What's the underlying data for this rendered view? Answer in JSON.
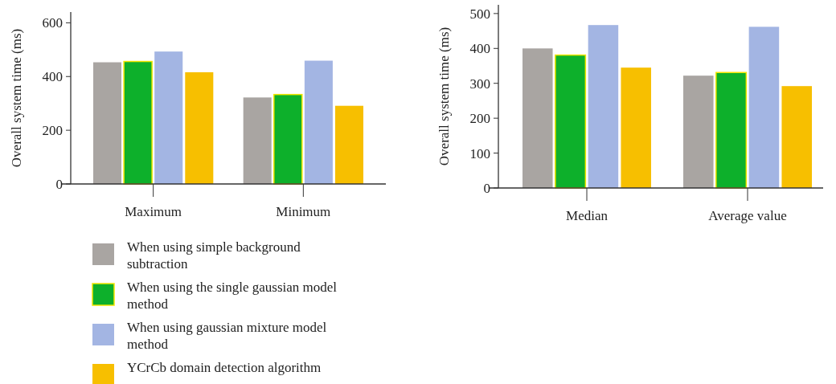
{
  "chart_data": [
    {
      "type": "bar",
      "ylabel": "Overall system time (ms)",
      "categories": [
        "Maximum",
        "Minimum"
      ],
      "ylim": [
        0,
        640
      ],
      "yticks": [
        0,
        200,
        400,
        600
      ],
      "legend": "bottom",
      "grid": false,
      "series": [
        {
          "name": "When using simple background subtraction",
          "color": "#a9a5a2",
          "values": [
            453,
            322
          ]
        },
        {
          "name": "When using the single gaussian model method",
          "color": "#0db02b",
          "values": [
            456,
            333
          ]
        },
        {
          "name": "When using gaussian mixture model method",
          "color": "#a3b5e3",
          "values": [
            493,
            459
          ]
        },
        {
          "name": "YCrCb domain detection algorithm",
          "color": "#f7bf00",
          "values": [
            416,
            291
          ]
        }
      ]
    },
    {
      "type": "bar",
      "ylabel": "Overall system time (ms)",
      "categories": [
        "Median",
        "Average value"
      ],
      "ylim": [
        0,
        525
      ],
      "yticks": [
        0,
        100,
        200,
        300,
        400,
        500
      ],
      "legend": false,
      "grid": false,
      "series": [
        {
          "color": "#a9a5a2",
          "values": [
            400,
            322
          ]
        },
        {
          "color": "#0db02b",
          "values": [
            381,
            331
          ]
        },
        {
          "color": "#a3b5e3",
          "values": [
            467,
            462
          ]
        },
        {
          "color": "#f7bf00",
          "values": [
            345,
            292
          ]
        }
      ]
    }
  ]
}
